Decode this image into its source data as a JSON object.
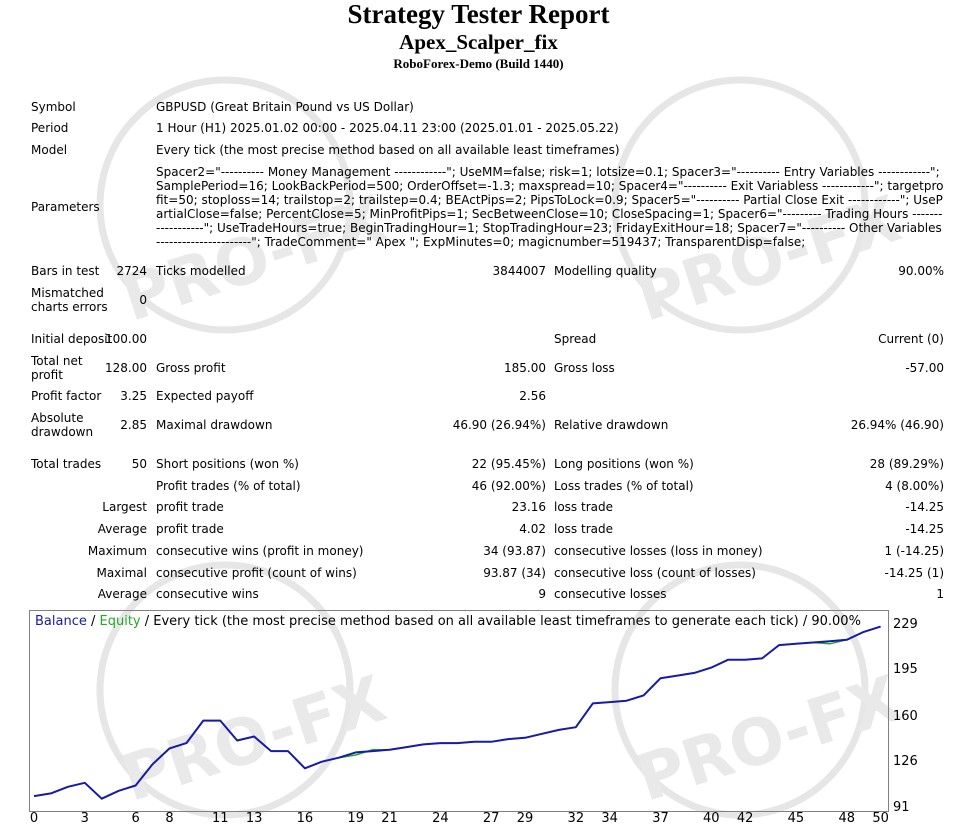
{
  "report": {
    "title": "Strategy Tester Report",
    "ea_name": "Apex_Scalper_fix",
    "server": "RoboForex-Demo (Build 1440)"
  },
  "info": {
    "symbol_label": "Symbol",
    "symbol_value": "GBPUSD (Great Britain Pound vs US Dollar)",
    "period_label": "Period",
    "period_value": "1 Hour (H1) 2025.01.02 00:00 - 2025.04.11 23:00 (2025.01.01 - 2025.05.22)",
    "model_label": "Model",
    "model_value": "Every tick (the most precise method based on all available least timeframes)",
    "parameters_label": "Parameters",
    "parameters_value": "Spacer2=\"---------- Money Management ------------\"; UseMM=false; risk=1; lotsize=0.1; Spacer3=\"---------- Entry Variables ------------\"; SamplePeriod=16; LookBackPeriod=500; OrderOffset=-1.3; maxspread=10; Spacer4=\"---------- Exit Variabless ------------\"; targetprofit=50; stoploss=14; trailstop=2; trailstep=0.4; BEActPips=2; PipsToLock=0.9; Spacer5=\"---------- Partial Close Exit ------------\"; UsePartialClose=false; PercentClose=5; MinProfitPips=1; SecBetweenClose=10; CloseSpacing=1; Spacer6=\"--------- Trading Hours ------------------\"; UseTradeHours=true; BeginTradingHour=1; StopTradingHour=23; FridayExitHour=18; Spacer7=\"---------- Other Variables ----------------------\"; TradeComment=\" Apex \"; ExpMinutes=0; magicnumber=519437; TransparentDisp=false;"
  },
  "stats": {
    "bars_label": "Bars in test",
    "bars_value": "2724",
    "ticks_label": "Ticks modelled",
    "ticks_value": "3844007",
    "quality_label": "Modelling quality",
    "quality_value": "90.00%",
    "mismatch_label_1": "Mismatched",
    "mismatch_label_2": "charts errors",
    "mismatch_value": "0",
    "deposit_label": "Initial deposit",
    "deposit_value": "100.00",
    "spread_label": "Spread",
    "spread_value": "Current (0)",
    "netprofit_label_1": "Total net",
    "netprofit_label_2": "profit",
    "netprofit_value": "128.00",
    "grossprofit_label": "Gross profit",
    "grossprofit_value": "185.00",
    "grossloss_label": "Gross loss",
    "grossloss_value": "-57.00",
    "pf_label": "Profit factor",
    "pf_value": "3.25",
    "expected_label": "Expected payoff",
    "expected_value": "2.56",
    "absdd_label_1": "Absolute",
    "absdd_label_2": "drawdown",
    "absdd_value": "2.85",
    "maxdd_label": "Maximal drawdown",
    "maxdd_value": "46.90 (26.94%)",
    "reldd_label": "Relative drawdown",
    "reldd_value": "26.94% (46.90)",
    "trades_label": "Total trades",
    "trades_value": "50",
    "short_label": "Short positions (won %)",
    "short_value": "22 (95.45%)",
    "long_label": "Long positions (won %)",
    "long_value": "28 (89.29%)",
    "profit_trades_label": "Profit trades (% of total)",
    "profit_trades_value": "46 (92.00%)",
    "loss_trades_label": "Loss trades (% of total)",
    "loss_trades_value": "4 (8.00%)",
    "largest_label": "Largest",
    "largest_profit_label": "profit trade",
    "largest_profit_value": "23.16",
    "largest_loss_label": "loss trade",
    "largest_loss_value": "-14.25",
    "average_label": "Average",
    "average_profit_label": "profit trade",
    "average_profit_value": "4.02",
    "average_loss_label": "loss trade",
    "average_loss_value": "-14.25",
    "maximum_label": "Maximum",
    "max_wins_label": "consecutive wins (profit in money)",
    "max_wins_value": "34 (93.87)",
    "max_losses_label": "consecutive losses (loss in money)",
    "max_losses_value": "1 (-14.25)",
    "maximal_label": "Maximal",
    "maximal_profit_label": "consecutive profit (count of wins)",
    "maximal_profit_value": "93.87 (34)",
    "maximal_loss_label": "consecutive loss (count of losses)",
    "maximal_loss_value": "-14.25 (1)",
    "avg_consec_label": "Average",
    "avg_wins_label": "consecutive wins",
    "avg_wins_value": "9",
    "avg_losses_label": "consecutive losses",
    "avg_losses_value": "1"
  },
  "chart_caption": {
    "balance": "Balance",
    "sep1": " / ",
    "equity": "Equity",
    "rest": " / Every tick (the most precise method based on all available least timeframes to generate each tick) / 90.00%"
  },
  "colors": {
    "balance": "#1a1aa8",
    "equity": "#22aa22",
    "watermark": "#e4e4e4"
  },
  "watermark_text": [
    "PRO-FX",
    "PRO-FX",
    "PRO-FX",
    "PRO-FX"
  ],
  "chart_data": {
    "type": "line",
    "title": "",
    "xlabel": "",
    "ylabel": "",
    "x_ticks": [
      0,
      3,
      6,
      8,
      11,
      13,
      16,
      19,
      21,
      24,
      27,
      29,
      32,
      34,
      37,
      40,
      42,
      45,
      48,
      50
    ],
    "y_ticks": [
      91,
      126,
      160,
      195,
      229
    ],
    "xlim": [
      0,
      50.2
    ],
    "ylim": [
      91,
      236
    ],
    "series": [
      {
        "name": "Balance",
        "x": [
          0,
          1,
          2,
          3,
          4,
          5,
          6,
          7,
          8,
          9,
          10,
          11,
          12,
          13,
          14,
          15,
          16,
          17,
          18,
          19,
          20,
          21,
          22,
          23,
          24,
          25,
          26,
          27,
          28,
          29,
          30,
          31,
          32,
          33,
          34,
          35,
          36,
          37,
          38,
          39,
          40,
          41,
          42,
          43,
          44,
          45,
          46,
          47,
          48,
          49,
          50
        ],
        "values": [
          100,
          102,
          107,
          110,
          98,
          104,
          108,
          124,
          136,
          140,
          157,
          157,
          142,
          145,
          134,
          134,
          121,
          126,
          129,
          133,
          134,
          135,
          137,
          139,
          140,
          140,
          141,
          141,
          143,
          144,
          147,
          150,
          152,
          170,
          171,
          172,
          176,
          189,
          191,
          193,
          197,
          203,
          203,
          204,
          214,
          215,
          216,
          217,
          218,
          224,
          228
        ]
      },
      {
        "name": "Equity",
        "x": [
          0,
          1,
          2,
          3,
          4,
          5,
          6,
          7,
          8,
          9,
          10,
          11,
          12,
          13,
          14,
          15,
          16,
          17,
          18,
          19,
          20,
          21,
          22,
          23,
          24,
          25,
          26,
          27,
          28,
          29,
          30,
          31,
          32,
          33,
          34,
          35,
          36,
          37,
          38,
          39,
          40,
          41,
          42,
          43,
          44,
          45,
          46,
          47,
          48,
          49,
          50
        ],
        "values": [
          100,
          102,
          107,
          110,
          98,
          104,
          108,
          124,
          136,
          140,
          157,
          157,
          142,
          145,
          134,
          134,
          121,
          126,
          129,
          131,
          135,
          135,
          137,
          139,
          140,
          140,
          141,
          141,
          143,
          144,
          147,
          150,
          152,
          170,
          171,
          172,
          176,
          189,
          191,
          193,
          197,
          203,
          203,
          204,
          214,
          215,
          216,
          215,
          218,
          224,
          228
        ]
      }
    ]
  }
}
